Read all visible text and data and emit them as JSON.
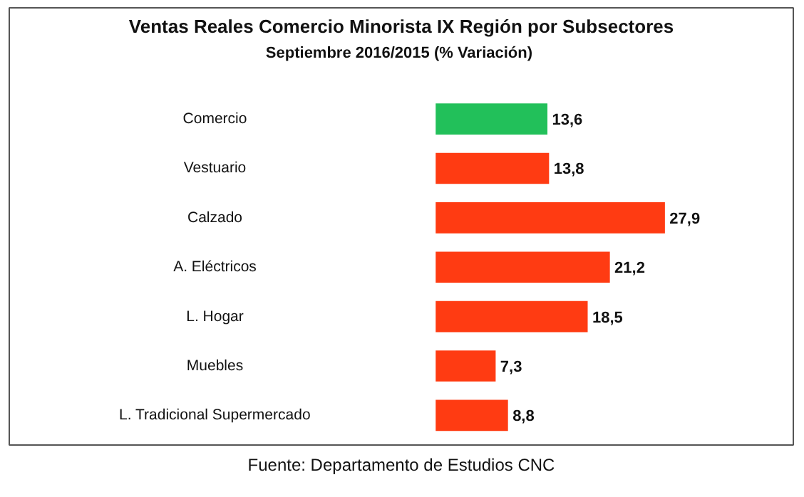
{
  "chart_data": {
    "type": "bar",
    "orientation": "horizontal",
    "title": "Ventas Reales Comercio Minorista IX Región por Subsectores",
    "subtitle": "Septiembre  2016/2015 (% Variación)",
    "categories": [
      "Comercio",
      "Vestuario",
      "Calzado",
      "A. Eléctricos",
      "L. Hogar",
      "Muebles",
      "L. Tradicional Supermercado"
    ],
    "values": [
      13.6,
      13.8,
      27.9,
      21.2,
      18.5,
      7.3,
      8.8
    ],
    "colors": [
      "#22c05a",
      "#ff3b12",
      "#ff3b12",
      "#ff3b12",
      "#ff3b12",
      "#ff3b12",
      "#ff3b12"
    ],
    "value_labels": [
      "13,6",
      "13,8",
      "27,9",
      "21,2",
      "18,5",
      "7,3",
      "8,8"
    ],
    "annotations": [
      "Fuente: Departamento de Estudios CNC"
    ]
  }
}
